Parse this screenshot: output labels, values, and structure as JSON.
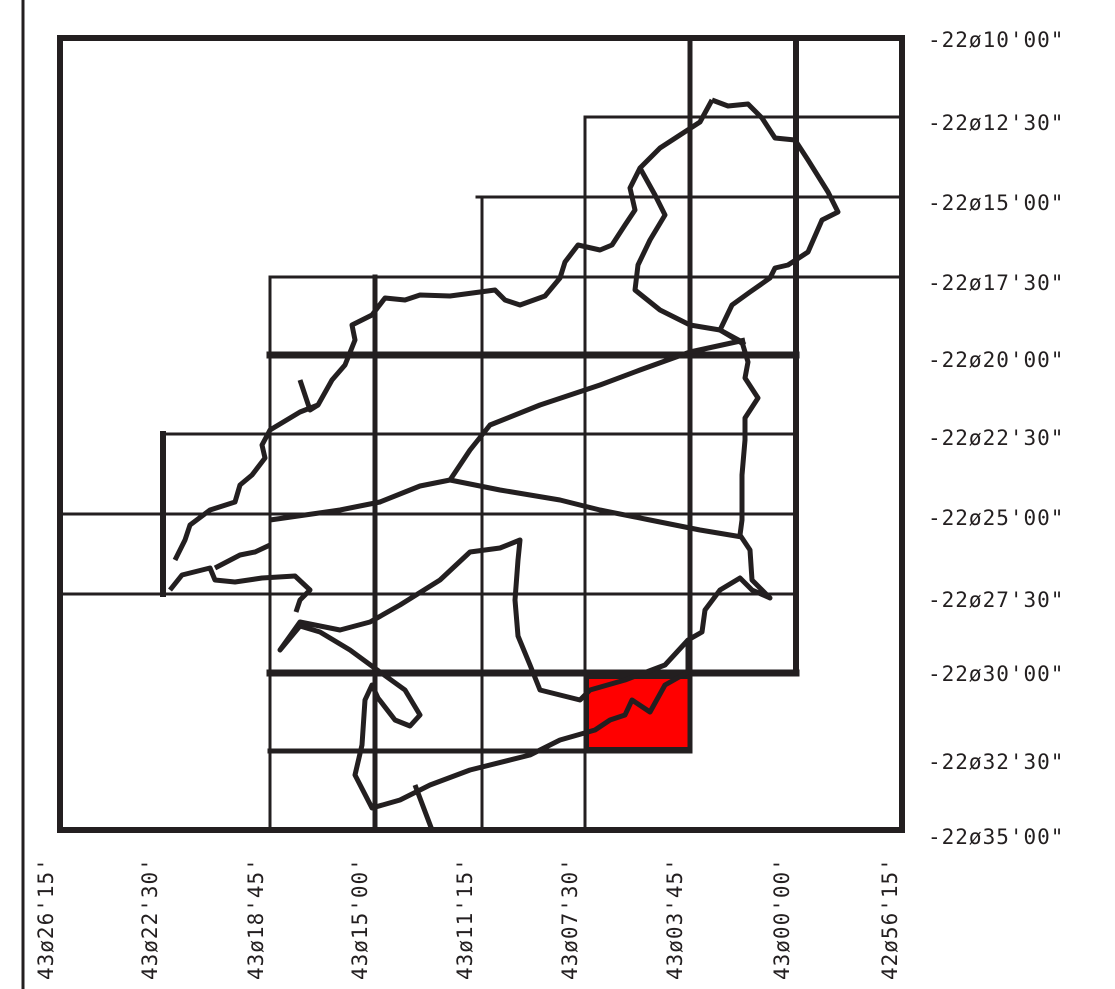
{
  "map": {
    "colors": {
      "line": "#231f20",
      "highlight": "#ff0000",
      "background": "#ffffff"
    },
    "latitude_labels": [
      "-22ø10'00\"",
      "-22ø12'30\"",
      "-22ø15'00\"",
      "-22ø17'30\"",
      "-22ø20'00\"",
      "-22ø22'30\"",
      "-22ø25'00\"",
      "-22ø27'30\"",
      "-22ø30'00\"",
      "-22ø32'30\"",
      "-22ø35'00\""
    ],
    "longitude_labels": [
      "43ø26'15'",
      "43ø22'30'",
      "43ø18'45'",
      "43ø15'00'",
      "43ø11'15'",
      "43ø07'30'",
      "43ø03'45'",
      "43ø00'00'",
      "42ø56'15'"
    ],
    "highlighted_cell": {
      "lon": "43ø07'30' – 43ø03'45'",
      "lat": "-22ø30'00\" – -22ø32'30\""
    }
  }
}
